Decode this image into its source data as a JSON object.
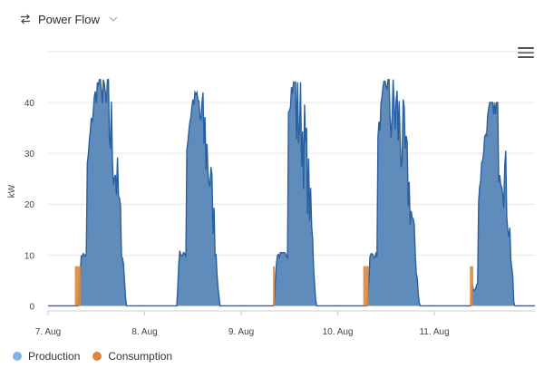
{
  "header": {
    "icon": "swap-arrows-icon",
    "title": "Power Flow",
    "dropdown_icon": "chevron-down-icon"
  },
  "menu": {
    "icon": "hamburger-menu-icon"
  },
  "colors": {
    "production_fill": "#4e7fb3",
    "production_line": "#2a5fa0",
    "consumption": "#d9873e",
    "grid": "#e6e6e6",
    "axis": "#cccccc",
    "legend_production": "#7fb2e8"
  },
  "chart_data": {
    "type": "area",
    "title": "Power Flow",
    "xlabel": "",
    "ylabel": "kW",
    "xlim": [
      "2024-08-07T00:00",
      "2024-08-12T01:00"
    ],
    "ylim": [
      -1,
      50
    ],
    "y_ticks": [
      0,
      10,
      20,
      30,
      40
    ],
    "y_tick_labels": [
      "0",
      "10",
      "20",
      "30",
      "40"
    ],
    "x_tick_labels": [
      "7. Aug",
      "8. Aug",
      "9. Aug",
      "10. Aug",
      "11. Aug"
    ],
    "grid": true,
    "legend": "bottom-left",
    "series": [
      {
        "name": "Production",
        "days": [
          {
            "sunrise": 7.6,
            "peak_hour": 13.3,
            "sunset": 19.4,
            "peak": 44.5,
            "step_start": 8.2,
            "step_end": 9.7,
            "step": 10
          },
          {
            "sunrise": 8.0,
            "peak_hour": 13.1,
            "sunset": 18.6,
            "peak": 42.0,
            "step_start": 9.0,
            "step_end": 10.4,
            "step": 10
          },
          {
            "sunrise": 8.2,
            "peak_hour": 13.5,
            "sunset": 18.6,
            "peak": 44.0,
            "step_start": 9.0,
            "step_end": 11.6,
            "step": 10
          },
          {
            "sunrise": 7.4,
            "peak_hour": 12.8,
            "sunset": 20.3,
            "peak": 44.5,
            "step_start": 8.2,
            "step_end": 9.8,
            "step": 10
          },
          {
            "sunrise": 9.2,
            "peak_hour": 15.0,
            "sunset": 19.8,
            "peak": 40.0,
            "step_start": 9.6,
            "step_end": 10.8,
            "step": 3
          }
        ]
      },
      {
        "name": "Consumption",
        "blocks": [
          {
            "start": "2024-08-07T06:40",
            "end": "2024-08-07T08:10",
            "kW": 7.8
          },
          {
            "start": "2024-08-09T07:55",
            "end": "2024-08-09T08:20",
            "kW": 7.8
          },
          {
            "start": "2024-08-10T06:20",
            "end": "2024-08-10T07:40",
            "kW": 7.8
          },
          {
            "start": "2024-08-11T08:50",
            "end": "2024-08-11T09:40",
            "kW": 7.8
          }
        ]
      }
    ]
  },
  "legend": {
    "production_label": "Production",
    "consumption_label": "Consumption"
  }
}
